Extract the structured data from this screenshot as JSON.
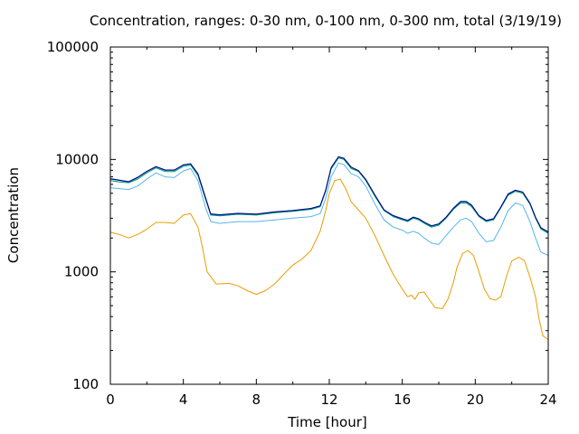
{
  "chart_data": {
    "type": "line",
    "title": "Concentration, ranges: 0-30 nm, 0-100 nm, 0-300 nm, total (3/19/19)",
    "xlabel": "Time [hour]",
    "ylabel": "Concentration",
    "xlim": [
      0,
      24
    ],
    "ylim": [
      100,
      100000
    ],
    "yscale": "log",
    "grid": false,
    "legend": "none",
    "xticks": [
      "0",
      "4",
      "8",
      "12",
      "16",
      "20",
      "24"
    ],
    "yticks": [
      "100",
      "1000",
      "10000",
      "100000"
    ],
    "series": [
      {
        "color": "#e69f00",
        "points": [
          [
            0,
            2250
          ],
          [
            0.5,
            2150
          ],
          [
            1,
            2000
          ],
          [
            1.5,
            2150
          ],
          [
            2,
            2400
          ],
          [
            2.5,
            2750
          ],
          [
            3,
            2750
          ],
          [
            3.5,
            2700
          ],
          [
            4,
            3200
          ],
          [
            4.4,
            3300
          ],
          [
            4.8,
            2500
          ],
          [
            5,
            1800
          ],
          [
            5.3,
            1000
          ],
          [
            5.8,
            780
          ],
          [
            6.5,
            790
          ],
          [
            7,
            750
          ],
          [
            7.5,
            680
          ],
          [
            8,
            630
          ],
          [
            8.5,
            680
          ],
          [
            9,
            780
          ],
          [
            9.5,
            950
          ],
          [
            10,
            1150
          ],
          [
            10.5,
            1300
          ],
          [
            11,
            1550
          ],
          [
            11.5,
            2300
          ],
          [
            11.8,
            3500
          ],
          [
            12,
            5000
          ],
          [
            12.3,
            6500
          ],
          [
            12.6,
            6700
          ],
          [
            12.9,
            5500
          ],
          [
            13.2,
            4200
          ],
          [
            13.5,
            3700
          ],
          [
            14,
            3000
          ],
          [
            14.5,
            2100
          ],
          [
            15,
            1400
          ],
          [
            15.5,
            950
          ],
          [
            16,
            700
          ],
          [
            16.3,
            600
          ],
          [
            16.5,
            620
          ],
          [
            16.7,
            570
          ],
          [
            16.9,
            650
          ],
          [
            17.2,
            660
          ],
          [
            17.5,
            560
          ],
          [
            17.8,
            480
          ],
          [
            18.2,
            470
          ],
          [
            18.5,
            570
          ],
          [
            18.8,
            800
          ],
          [
            19,
            1100
          ],
          [
            19.3,
            1450
          ],
          [
            19.6,
            1550
          ],
          [
            19.9,
            1400
          ],
          [
            20.2,
            1000
          ],
          [
            20.5,
            700
          ],
          [
            20.8,
            580
          ],
          [
            21.1,
            560
          ],
          [
            21.4,
            600
          ],
          [
            21.7,
            900
          ],
          [
            22,
            1250
          ],
          [
            22.4,
            1350
          ],
          [
            22.7,
            1250
          ],
          [
            23,
            900
          ],
          [
            23.3,
            600
          ],
          [
            23.5,
            380
          ],
          [
            23.7,
            270
          ],
          [
            24,
            250
          ]
        ]
      },
      {
        "color": "#56b4e9",
        "points": [
          [
            0,
            5600
          ],
          [
            0.5,
            5500
          ],
          [
            1,
            5400
          ],
          [
            1.5,
            5800
          ],
          [
            2,
            6700
          ],
          [
            2.5,
            7600
          ],
          [
            3,
            7000
          ],
          [
            3.5,
            6900
          ],
          [
            4,
            7900
          ],
          [
            4.4,
            8300
          ],
          [
            4.8,
            6500
          ],
          [
            5.2,
            3800
          ],
          [
            5.5,
            2800
          ],
          [
            6,
            2700
          ],
          [
            7,
            2800
          ],
          [
            8,
            2800
          ],
          [
            9,
            2900
          ],
          [
            10,
            3000
          ],
          [
            11,
            3100
          ],
          [
            11.5,
            3300
          ],
          [
            11.8,
            4500
          ],
          [
            12.1,
            7000
          ],
          [
            12.5,
            9300
          ],
          [
            12.8,
            9000
          ],
          [
            13.2,
            7500
          ],
          [
            13.6,
            7000
          ],
          [
            14,
            5800
          ],
          [
            14.5,
            4000
          ],
          [
            15,
            2900
          ],
          [
            15.5,
            2500
          ],
          [
            16,
            2350
          ],
          [
            16.3,
            2200
          ],
          [
            16.6,
            2300
          ],
          [
            16.9,
            2200
          ],
          [
            17.2,
            2000
          ],
          [
            17.6,
            1800
          ],
          [
            18,
            1750
          ],
          [
            18.4,
            2100
          ],
          [
            18.8,
            2500
          ],
          [
            19.2,
            2900
          ],
          [
            19.5,
            3000
          ],
          [
            19.8,
            2800
          ],
          [
            20.2,
            2200
          ],
          [
            20.6,
            1850
          ],
          [
            21,
            1900
          ],
          [
            21.4,
            2500
          ],
          [
            21.8,
            3500
          ],
          [
            22.2,
            4100
          ],
          [
            22.6,
            3900
          ],
          [
            23,
            2800
          ],
          [
            23.3,
            2000
          ],
          [
            23.6,
            1500
          ],
          [
            24,
            1400
          ]
        ]
      },
      {
        "color": "#009e73",
        "points": [
          [
            0,
            6500
          ],
          [
            0.5,
            6300
          ],
          [
            1,
            6200
          ],
          [
            1.5,
            6700
          ],
          [
            2,
            7600
          ],
          [
            2.5,
            8400
          ],
          [
            3,
            7800
          ],
          [
            3.5,
            7800
          ],
          [
            4,
            8700
          ],
          [
            4.4,
            8900
          ],
          [
            4.8,
            7200
          ],
          [
            5.2,
            4500
          ],
          [
            5.5,
            3200
          ],
          [
            6,
            3150
          ],
          [
            7,
            3250
          ],
          [
            8,
            3200
          ],
          [
            9,
            3350
          ],
          [
            10,
            3450
          ],
          [
            11,
            3600
          ],
          [
            11.5,
            3800
          ],
          [
            11.8,
            5200
          ],
          [
            12.1,
            8200
          ],
          [
            12.5,
            10300
          ],
          [
            12.8,
            10000
          ],
          [
            13.2,
            8300
          ],
          [
            13.6,
            7800
          ],
          [
            14,
            6500
          ],
          [
            14.5,
            4700
          ],
          [
            15,
            3500
          ],
          [
            15.5,
            3100
          ],
          [
            16,
            2900
          ],
          [
            16.3,
            2800
          ],
          [
            16.6,
            3000
          ],
          [
            16.9,
            2900
          ],
          [
            17.2,
            2700
          ],
          [
            17.6,
            2500
          ],
          [
            18,
            2600
          ],
          [
            18.4,
            3000
          ],
          [
            18.8,
            3600
          ],
          [
            19.2,
            4100
          ],
          [
            19.5,
            4100
          ],
          [
            19.8,
            3800
          ],
          [
            20.2,
            3100
          ],
          [
            20.6,
            2800
          ],
          [
            21,
            2900
          ],
          [
            21.4,
            3700
          ],
          [
            21.8,
            4800
          ],
          [
            22.2,
            5200
          ],
          [
            22.6,
            5000
          ],
          [
            23,
            4000
          ],
          [
            23.3,
            3000
          ],
          [
            23.6,
            2400
          ],
          [
            24,
            2200
          ]
        ]
      },
      {
        "color": "#0072b2",
        "points": [
          [
            0,
            6700
          ],
          [
            0.5,
            6500
          ],
          [
            1,
            6300
          ],
          [
            1.5,
            6900
          ],
          [
            2,
            7800
          ],
          [
            2.5,
            8600
          ],
          [
            3,
            8000
          ],
          [
            3.5,
            8000
          ],
          [
            4,
            8900
          ],
          [
            4.4,
            9100
          ],
          [
            4.8,
            7400
          ],
          [
            5.2,
            4600
          ],
          [
            5.5,
            3250
          ],
          [
            6,
            3200
          ],
          [
            7,
            3300
          ],
          [
            8,
            3250
          ],
          [
            9,
            3400
          ],
          [
            10,
            3500
          ],
          [
            11,
            3650
          ],
          [
            11.5,
            3850
          ],
          [
            11.8,
            5300
          ],
          [
            12.1,
            8400
          ],
          [
            12.5,
            10500
          ],
          [
            12.8,
            10200
          ],
          [
            13.2,
            8500
          ],
          [
            13.6,
            7900
          ],
          [
            14,
            6600
          ],
          [
            14.5,
            4800
          ],
          [
            15,
            3550
          ],
          [
            15.5,
            3150
          ],
          [
            16,
            2950
          ],
          [
            16.3,
            2850
          ],
          [
            16.6,
            3050
          ],
          [
            16.9,
            2950
          ],
          [
            17.2,
            2750
          ],
          [
            17.6,
            2550
          ],
          [
            18,
            2650
          ],
          [
            18.4,
            3050
          ],
          [
            18.8,
            3650
          ],
          [
            19.2,
            4200
          ],
          [
            19.5,
            4200
          ],
          [
            19.8,
            3900
          ],
          [
            20.2,
            3150
          ],
          [
            20.6,
            2850
          ],
          [
            21,
            2950
          ],
          [
            21.4,
            3750
          ],
          [
            21.8,
            4900
          ],
          [
            22.2,
            5300
          ],
          [
            22.6,
            5100
          ],
          [
            23,
            4050
          ],
          [
            23.3,
            3050
          ],
          [
            23.6,
            2450
          ],
          [
            24,
            2250
          ]
        ]
      },
      {
        "color": "#000080",
        "points": [
          [
            0,
            6750
          ],
          [
            0.5,
            6550
          ],
          [
            1,
            6350
          ],
          [
            1.5,
            6950
          ],
          [
            2,
            7850
          ],
          [
            2.5,
            8650
          ],
          [
            3,
            8050
          ],
          [
            3.5,
            8050
          ],
          [
            4,
            8950
          ],
          [
            4.4,
            9150
          ],
          [
            4.8,
            7450
          ],
          [
            5.2,
            4650
          ],
          [
            5.5,
            3280
          ],
          [
            6,
            3220
          ],
          [
            7,
            3320
          ],
          [
            8,
            3270
          ],
          [
            9,
            3420
          ],
          [
            10,
            3520
          ],
          [
            11,
            3670
          ],
          [
            11.5,
            3870
          ],
          [
            11.8,
            5330
          ],
          [
            12.1,
            8450
          ],
          [
            12.5,
            10550
          ],
          [
            12.8,
            10250
          ],
          [
            13.2,
            8550
          ],
          [
            13.6,
            7950
          ],
          [
            14,
            6650
          ],
          [
            14.5,
            4830
          ],
          [
            15,
            3570
          ],
          [
            15.5,
            3170
          ],
          [
            16,
            2970
          ],
          [
            16.3,
            2870
          ],
          [
            16.6,
            3070
          ],
          [
            16.9,
            2970
          ],
          [
            17.2,
            2770
          ],
          [
            17.6,
            2570
          ],
          [
            18,
            2670
          ],
          [
            18.4,
            3070
          ],
          [
            18.8,
            3680
          ],
          [
            19.2,
            4230
          ],
          [
            19.5,
            4230
          ],
          [
            19.8,
            3930
          ],
          [
            20.2,
            3170
          ],
          [
            20.6,
            2870
          ],
          [
            21,
            2970
          ],
          [
            21.4,
            3780
          ],
          [
            21.8,
            4930
          ],
          [
            22.2,
            5330
          ],
          [
            22.6,
            5130
          ],
          [
            23,
            4080
          ],
          [
            23.3,
            3070
          ],
          [
            23.6,
            2470
          ],
          [
            24,
            2270
          ]
        ]
      }
    ]
  }
}
